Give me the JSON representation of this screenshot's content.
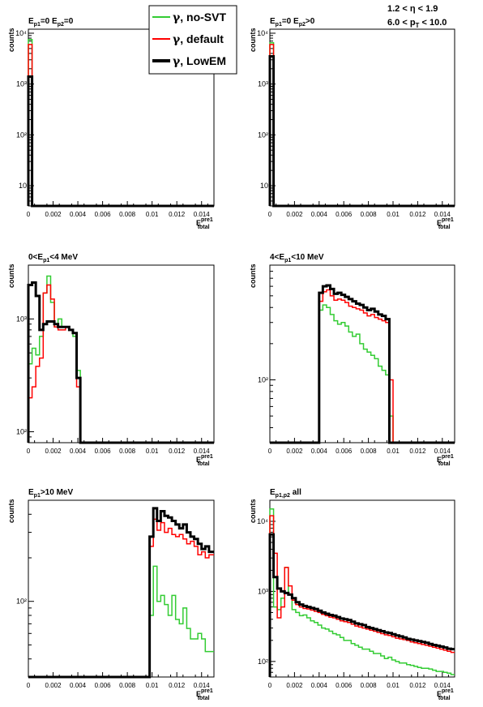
{
  "header": {
    "eta_cut": "1.2 < η < 1.9",
    "pt_cut_pre": "6.0 < p",
    "pt_cut_sub": "T",
    "pt_cut_post": " < 10.0"
  },
  "legend": [
    {
      "prefix": "γ",
      "label": ", no-SVT",
      "color": "#33cc33"
    },
    {
      "prefix": "γ",
      "label": ", default",
      "color": "#ff0000"
    },
    {
      "prefix": "γ",
      "label": ", LowEM",
      "color": "#000000"
    }
  ],
  "x_axis": {
    "range": [
      0,
      0.015
    ],
    "ticks": [
      "0",
      "0.002",
      "0.004",
      "0.006",
      "0.008",
      "0.01",
      "0.012",
      "0.014"
    ],
    "tick_values": [
      0,
      0.002,
      0.004,
      0.006,
      0.008,
      0.01,
      0.012,
      0.014
    ],
    "label_main": "E",
    "label_sup": "pre1",
    "label_sub": "total"
  },
  "y_axis_label": "counts",
  "chart_data": [
    {
      "type": "line",
      "scale": "log",
      "title_parts": [
        [
          "E",
          ""
        ],
        [
          "p1",
          "sub"
        ],
        [
          "=0 E",
          ""
        ],
        [
          "p2",
          "sub"
        ],
        [
          "=0",
          ""
        ]
      ],
      "ylim": [
        4,
        12000
      ],
      "yticks": [
        10,
        100,
        1000,
        10000
      ],
      "ytick_labels": [
        "10",
        "10²",
        "10³",
        "10⁴"
      ],
      "x_edges": [
        0,
        0.0003,
        0.015
      ],
      "series": [
        {
          "name": "γ, no-SVT",
          "color": "#33cc33",
          "values": [
            7500,
            0
          ]
        },
        {
          "name": "γ, default",
          "color": "#ff0000",
          "values": [
            6000,
            0
          ]
        },
        {
          "name": "γ, LowEM",
          "color": "#000000",
          "values": [
            1400,
            0
          ]
        }
      ]
    },
    {
      "type": "line",
      "scale": "log",
      "title_parts": [
        [
          "E",
          ""
        ],
        [
          "p1",
          "sub"
        ],
        [
          "=0 E",
          ""
        ],
        [
          "p2",
          "sub"
        ],
        [
          ">0",
          ""
        ]
      ],
      "ylim": [
        4,
        12000
      ],
      "yticks": [
        10,
        100,
        1000,
        10000
      ],
      "ytick_labels": [
        "10",
        "10²",
        "10³",
        "10⁴"
      ],
      "x_edges": [
        0,
        0.0003,
        0.015
      ],
      "series": [
        {
          "name": "γ, no-SVT",
          "color": "#33cc33",
          "values": [
            6500,
            0
          ]
        },
        {
          "name": "γ, default",
          "color": "#ff0000",
          "values": [
            6000,
            0
          ]
        },
        {
          "name": "γ, LowEM",
          "color": "#000000",
          "values": [
            3500,
            0
          ]
        }
      ]
    },
    {
      "type": "line",
      "scale": "log",
      "title_parts": [
        [
          "0<E",
          ""
        ],
        [
          "p1",
          "sub"
        ],
        [
          "<4 MeV",
          ""
        ]
      ],
      "ylim": [
        80,
        3000
      ],
      "yticks": [
        100,
        1000
      ],
      "ytick_labels": [
        "10²",
        "10³"
      ],
      "x_edges": [
        0,
        0.0003,
        0.0006,
        0.0009,
        0.0012,
        0.0015,
        0.0018,
        0.0021,
        0.0024,
        0.0027,
        0.003,
        0.0033,
        0.0036,
        0.0039,
        0.0042,
        0.015
      ],
      "series": [
        {
          "name": "γ, no-SVT",
          "color": "#33cc33",
          "values": [
            400,
            550,
            480,
            700,
            1700,
            2400,
            1400,
            850,
            1000,
            850,
            850,
            800,
            700,
            350,
            0
          ]
        },
        {
          "name": "γ, default",
          "color": "#ff0000",
          "values": [
            200,
            250,
            380,
            450,
            1700,
            2000,
            1500,
            850,
            800,
            800,
            850,
            800,
            750,
            250,
            0
          ]
        },
        {
          "name": "γ, LowEM",
          "color": "#000000",
          "values": [
            2000,
            2100,
            1600,
            800,
            900,
            950,
            950,
            900,
            850,
            850,
            850,
            800,
            750,
            300,
            0
          ]
        }
      ]
    },
    {
      "type": "line",
      "scale": "log",
      "title_parts": [
        [
          "4<E",
          ""
        ],
        [
          "p1",
          "sub"
        ],
        [
          "<10 MeV",
          ""
        ]
      ],
      "ylim": [
        30,
        900
      ],
      "yticks": [
        100
      ],
      "ytick_labels": [
        "10²"
      ],
      "x_edges": [
        0,
        0.004,
        0.0043,
        0.0046,
        0.0049,
        0.0052,
        0.0055,
        0.0058,
        0.0061,
        0.0064,
        0.0067,
        0.007,
        0.0073,
        0.0076,
        0.0079,
        0.0082,
        0.0085,
        0.0088,
        0.0091,
        0.0094,
        0.0097,
        0.01,
        0.015
      ],
      "series": [
        {
          "name": "γ, no-SVT",
          "color": "#33cc33",
          "values": [
            0,
            380,
            420,
            400,
            350,
            310,
            290,
            300,
            280,
            250,
            230,
            240,
            200,
            180,
            170,
            160,
            150,
            130,
            120,
            110,
            50,
            0
          ]
        },
        {
          "name": "γ, default",
          "color": "#ff0000",
          "values": [
            0,
            450,
            540,
            560,
            500,
            460,
            470,
            460,
            440,
            410,
            400,
            390,
            380,
            360,
            340,
            350,
            330,
            320,
            310,
            300,
            100,
            0
          ]
        },
        {
          "name": "γ, LowEM",
          "color": "#000000",
          "values": [
            0,
            530,
            600,
            610,
            570,
            520,
            530,
            510,
            490,
            470,
            450,
            430,
            420,
            400,
            380,
            390,
            370,
            350,
            340,
            320,
            0,
            0
          ]
        }
      ]
    },
    {
      "type": "line",
      "scale": "log",
      "title_parts": [
        [
          "E",
          ""
        ],
        [
          "p1",
          "sub"
        ],
        [
          ">10 MeV",
          ""
        ]
      ],
      "ylim": [
        30,
        500
      ],
      "yticks": [
        100
      ],
      "ytick_labels": [
        "10²"
      ],
      "x_edges": [
        0,
        0.0098,
        0.0101,
        0.0104,
        0.0107,
        0.011,
        0.0113,
        0.0116,
        0.0119,
        0.0122,
        0.0125,
        0.0128,
        0.0131,
        0.0134,
        0.0137,
        0.014,
        0.0143,
        0.0146,
        0.015
      ],
      "series": [
        {
          "name": "γ, no-SVT",
          "color": "#33cc33",
          "values": [
            0,
            80,
            175,
            100,
            110,
            95,
            80,
            110,
            75,
            70,
            90,
            65,
            55,
            55,
            60,
            55,
            45,
            45
          ]
        },
        {
          "name": "γ, default",
          "color": "#ff0000",
          "values": [
            0,
            240,
            370,
            310,
            350,
            300,
            320,
            290,
            280,
            290,
            270,
            250,
            260,
            240,
            210,
            220,
            200,
            210
          ]
        },
        {
          "name": "γ, LowEM",
          "color": "#000000",
          "values": [
            0,
            280,
            440,
            360,
            420,
            390,
            380,
            360,
            340,
            320,
            340,
            300,
            280,
            270,
            250,
            230,
            240,
            220
          ]
        }
      ]
    },
    {
      "type": "line",
      "scale": "log",
      "title_parts": [
        [
          "E",
          ""
        ],
        [
          "p1,p2",
          "sub"
        ],
        [
          " all",
          ""
        ]
      ],
      "ylim": [
        60,
        20000
      ],
      "yticks": [
        100,
        1000,
        10000
      ],
      "ytick_labels": [
        "10²",
        "10³",
        "10⁴"
      ],
      "x_edges": [
        0,
        0.0003,
        0.0006,
        0.0009,
        0.0012,
        0.0015,
        0.0018,
        0.0021,
        0.0024,
        0.0027,
        0.003,
        0.0033,
        0.0036,
        0.0039,
        0.0042,
        0.0045,
        0.0048,
        0.0051,
        0.0054,
        0.0057,
        0.006,
        0.0063,
        0.0066,
        0.0069,
        0.0072,
        0.0075,
        0.0078,
        0.0081,
        0.0084,
        0.0087,
        0.009,
        0.0093,
        0.0096,
        0.0099,
        0.0102,
        0.0105,
        0.0108,
        0.0111,
        0.0114,
        0.0117,
        0.012,
        0.0123,
        0.0126,
        0.0129,
        0.0132,
        0.0135,
        0.0138,
        0.0141,
        0.0144,
        0.0147,
        0.015
      ],
      "series": [
        {
          "name": "γ, no-SVT",
          "color": "#33cc33",
          "values": [
            15000,
            600,
            550,
            800,
            2200,
            900,
            550,
            500,
            450,
            460,
            420,
            380,
            360,
            330,
            300,
            290,
            270,
            250,
            240,
            220,
            200,
            200,
            180,
            170,
            160,
            150,
            150,
            140,
            130,
            130,
            120,
            110,
            115,
            105,
            100,
            95,
            95,
            90,
            88,
            85,
            82,
            80,
            80,
            78,
            75,
            72,
            72,
            70,
            68,
            65
          ]
        },
        {
          "name": "γ, default",
          "color": "#ff0000",
          "values": [
            12000,
            3500,
            420,
            600,
            2200,
            1200,
            750,
            650,
            600,
            570,
            560,
            540,
            520,
            500,
            470,
            450,
            430,
            420,
            400,
            380,
            370,
            360,
            340,
            320,
            310,
            300,
            290,
            280,
            270,
            260,
            250,
            240,
            235,
            225,
            215,
            210,
            205,
            200,
            190,
            185,
            180,
            175,
            170,
            165,
            160,
            155,
            150,
            145,
            140,
            135
          ]
        },
        {
          "name": "γ, LowEM",
          "color": "#000000",
          "values": [
            6500,
            1600,
            1100,
            1000,
            950,
            900,
            800,
            700,
            650,
            620,
            600,
            580,
            560,
            530,
            500,
            480,
            460,
            450,
            430,
            410,
            400,
            390,
            370,
            350,
            340,
            330,
            310,
            300,
            290,
            280,
            270,
            260,
            255,
            245,
            235,
            228,
            220,
            210,
            205,
            200,
            195,
            190,
            185,
            178,
            172,
            168,
            163,
            158,
            152,
            150
          ]
        }
      ]
    }
  ]
}
